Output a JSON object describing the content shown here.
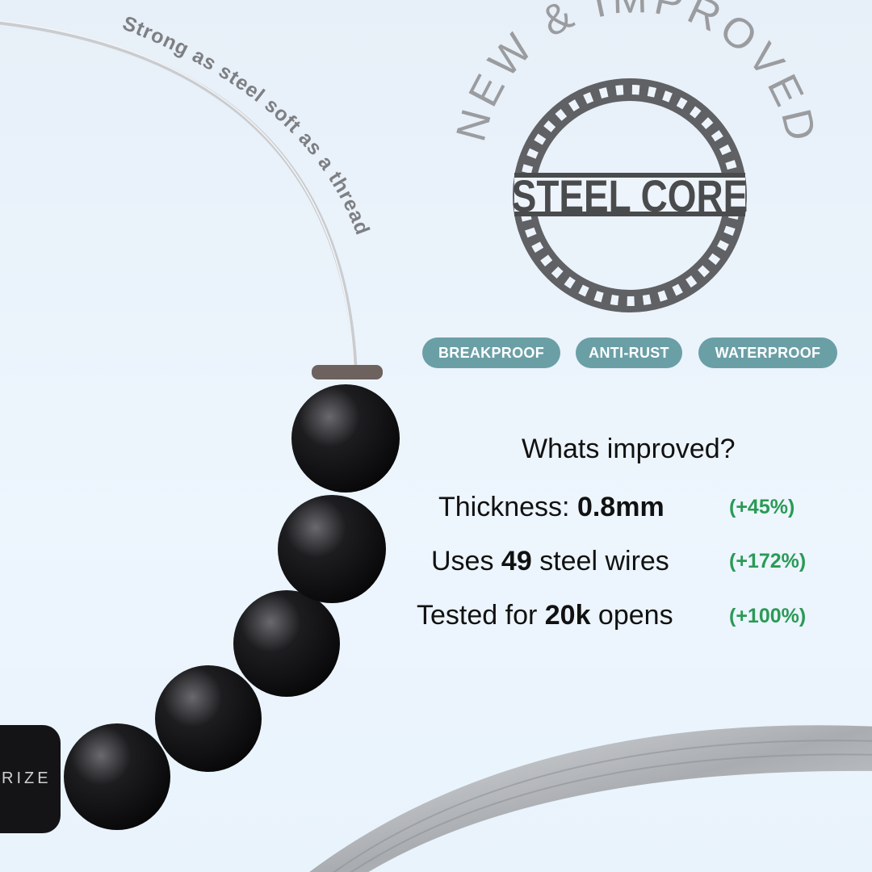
{
  "tagline": "Strong as steel soft as a thread",
  "badge": {
    "arc_text": "NEW & IMPROVED",
    "logo_text": "STEEL CORE"
  },
  "brand_mark": "RIZE",
  "features": [
    "BREAKPROOF",
    "ANTI-RUST",
    "WATERPROOF"
  ],
  "improvements": {
    "heading": "Whats improved?",
    "rows": [
      {
        "prefix": "Thickness: ",
        "value": "0.8mm",
        "suffix": "",
        "change": "(+45%)"
      },
      {
        "prefix": "Uses ",
        "value": "49",
        "suffix": " steel wires",
        "change": "(+172%)"
      },
      {
        "prefix": "Tested for ",
        "value": "20k",
        "suffix": " opens",
        "change": "(+100%)"
      }
    ]
  },
  "colors": {
    "pill": "#6a9fa6",
    "positive": "#2a9a56",
    "logo": "#58595b",
    "arc_text": "#9a9c9f"
  }
}
